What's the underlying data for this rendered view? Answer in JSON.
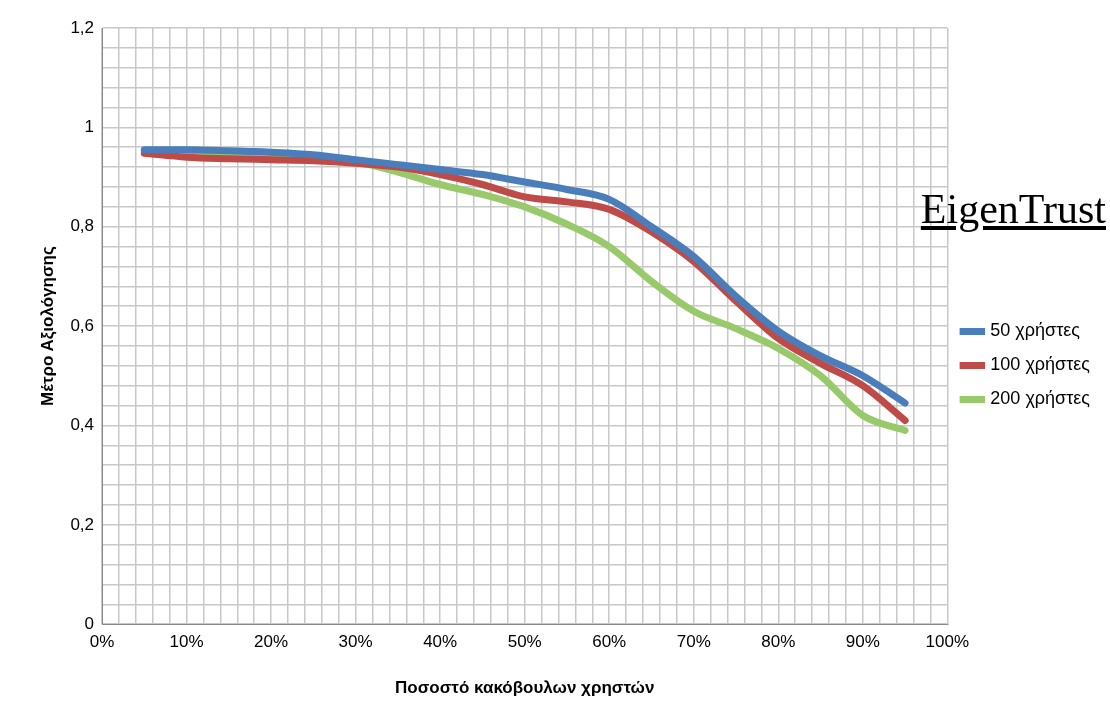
{
  "chart_data": {
    "type": "line",
    "xlabel": "Ποσοστό κακόβουλων χρηστών",
    "ylabel": "Μέτρο Αξιολόγησης",
    "annotations": [
      "EigenTrust"
    ],
    "x": [
      5,
      10,
      15,
      20,
      25,
      30,
      35,
      40,
      45,
      50,
      55,
      60,
      65,
      70,
      75,
      80,
      85,
      90,
      95
    ],
    "series": [
      {
        "name": "50 χρήστες",
        "color": "#4a7ebb",
        "values": [
          0.955,
          0.955,
          0.953,
          0.95,
          0.945,
          0.935,
          0.925,
          0.915,
          0.905,
          0.89,
          0.875,
          0.855,
          0.8,
          0.74,
          0.66,
          0.59,
          0.54,
          0.5,
          0.445
        ]
      },
      {
        "name": "100 χρήστες",
        "color": "#be4b48",
        "values": [
          0.948,
          0.94,
          0.937,
          0.935,
          0.933,
          0.928,
          0.92,
          0.905,
          0.885,
          0.86,
          0.85,
          0.835,
          0.79,
          0.73,
          0.65,
          0.575,
          0.525,
          0.48,
          0.41
        ]
      },
      {
        "name": "200 χρήστες",
        "color": "#98c96a",
        "values": [
          0.953,
          0.95,
          0.945,
          0.94,
          0.937,
          0.93,
          0.91,
          0.885,
          0.865,
          0.84,
          0.805,
          0.76,
          0.69,
          0.63,
          0.595,
          0.555,
          0.5,
          0.42,
          0.39
        ]
      }
    ],
    "xlim": [
      0,
      100
    ],
    "xticks": [
      {
        "value": 0,
        "label": "0%"
      },
      {
        "value": 2,
        "label": null
      },
      {
        "value": 4,
        "label": null
      },
      {
        "value": 6,
        "label": null
      },
      {
        "value": 8,
        "label": null
      },
      {
        "value": 10,
        "label": "10%"
      },
      {
        "value": 12,
        "label": null
      },
      {
        "value": 14,
        "label": null
      },
      {
        "value": 16,
        "label": null
      },
      {
        "value": 18,
        "label": null
      },
      {
        "value": 20,
        "label": "20%"
      },
      {
        "value": 22,
        "label": null
      },
      {
        "value": 24,
        "label": null
      },
      {
        "value": 26,
        "label": null
      },
      {
        "value": 28,
        "label": null
      },
      {
        "value": 30,
        "label": "30%"
      },
      {
        "value": 32,
        "label": null
      },
      {
        "value": 34,
        "label": null
      },
      {
        "value": 36,
        "label": null
      },
      {
        "value": 38,
        "label": null
      },
      {
        "value": 40,
        "label": "40%"
      },
      {
        "value": 42,
        "label": null
      },
      {
        "value": 44,
        "label": null
      },
      {
        "value": 46,
        "label": null
      },
      {
        "value": 48,
        "label": null
      },
      {
        "value": 50,
        "label": "50%"
      },
      {
        "value": 52,
        "label": null
      },
      {
        "value": 54,
        "label": null
      },
      {
        "value": 56,
        "label": null
      },
      {
        "value": 58,
        "label": null
      },
      {
        "value": 60,
        "label": "60%"
      },
      {
        "value": 62,
        "label": null
      },
      {
        "value": 64,
        "label": null
      },
      {
        "value": 66,
        "label": null
      },
      {
        "value": 68,
        "label": null
      },
      {
        "value": 70,
        "label": "70%"
      },
      {
        "value": 72,
        "label": null
      },
      {
        "value": 74,
        "label": null
      },
      {
        "value": 76,
        "label": null
      },
      {
        "value": 78,
        "label": null
      },
      {
        "value": 80,
        "label": "80%"
      },
      {
        "value": 82,
        "label": null
      },
      {
        "value": 84,
        "label": null
      },
      {
        "value": 86,
        "label": null
      },
      {
        "value": 88,
        "label": null
      },
      {
        "value": 90,
        "label": "90%"
      },
      {
        "value": 92,
        "label": null
      },
      {
        "value": 94,
        "label": null
      },
      {
        "value": 96,
        "label": null
      },
      {
        "value": 98,
        "label": null
      },
      {
        "value": 100,
        "label": "100%"
      }
    ],
    "ylim": [
      0,
      1.2
    ],
    "yticks": [
      {
        "value": 0,
        "label": "0"
      },
      {
        "value": 0.04,
        "label": null
      },
      {
        "value": 0.08,
        "label": null
      },
      {
        "value": 0.12,
        "label": null
      },
      {
        "value": 0.16,
        "label": null
      },
      {
        "value": 0.2,
        "label": "0,2"
      },
      {
        "value": 0.24,
        "label": null
      },
      {
        "value": 0.28,
        "label": null
      },
      {
        "value": 0.32,
        "label": null
      },
      {
        "value": 0.36,
        "label": null
      },
      {
        "value": 0.4,
        "label": "0,4"
      },
      {
        "value": 0.44,
        "label": null
      },
      {
        "value": 0.48,
        "label": null
      },
      {
        "value": 0.52,
        "label": null
      },
      {
        "value": 0.56,
        "label": null
      },
      {
        "value": 0.6,
        "label": "0,6"
      },
      {
        "value": 0.64,
        "label": null
      },
      {
        "value": 0.68,
        "label": null
      },
      {
        "value": 0.72,
        "label": null
      },
      {
        "value": 0.76,
        "label": null
      },
      {
        "value": 0.8,
        "label": "0,8"
      },
      {
        "value": 0.84,
        "label": null
      },
      {
        "value": 0.88,
        "label": null
      },
      {
        "value": 0.92,
        "label": null
      },
      {
        "value": 0.96,
        "label": null
      },
      {
        "value": 1,
        "label": "1"
      },
      {
        "value": 1.04,
        "label": null
      },
      {
        "value": 1.08,
        "label": null
      },
      {
        "value": 1.12,
        "label": null
      },
      {
        "value": 1.16,
        "label": null
      },
      {
        "value": 1.2,
        "label": "1,2"
      }
    ],
    "grid": true,
    "legend": "right",
    "marker": "none",
    "line_style": "solid"
  }
}
